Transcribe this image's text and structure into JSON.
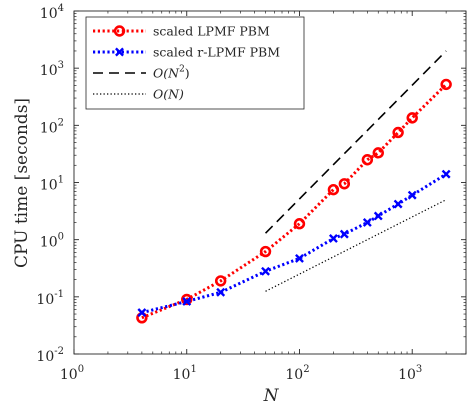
{
  "chart_data": {
    "type": "line",
    "xlabel": "N",
    "ylabel": "CPU time [seconds]",
    "xscale": "log",
    "yscale": "log",
    "xlim": [
      1,
      3000
    ],
    "ylim": [
      0.01,
      10000
    ],
    "xticks": [
      {
        "base": "10",
        "exp": "0",
        "value": 1
      },
      {
        "base": "10",
        "exp": "1",
        "value": 10
      },
      {
        "base": "10",
        "exp": "2",
        "value": 100
      },
      {
        "base": "10",
        "exp": "3",
        "value": 1000
      }
    ],
    "yticks": [
      {
        "base": "10",
        "exp": "-2",
        "value": 0.01
      },
      {
        "base": "10",
        "exp": "-1",
        "value": 0.1
      },
      {
        "base": "10",
        "exp": "0",
        "value": 1
      },
      {
        "base": "10",
        "exp": "1",
        "value": 10
      },
      {
        "base": "10",
        "exp": "2",
        "value": 100
      },
      {
        "base": "10",
        "exp": "3",
        "value": 1000
      },
      {
        "base": "10",
        "exp": "4",
        "value": 10000
      }
    ],
    "grid": false,
    "legend_position": "top-left",
    "series": [
      {
        "name": "scaled LPMF PBM",
        "color": "#ff0000",
        "line": "dotted",
        "marker": "circle",
        "x": [
          4,
          10,
          20,
          50,
          100,
          200,
          250,
          400,
          500,
          750,
          1000,
          2000
        ],
        "y": [
          0.043,
          0.09,
          0.19,
          0.62,
          1.9,
          7.5,
          9.5,
          25,
          33,
          75,
          135,
          520
        ]
      },
      {
        "name": "scaled r-LPMF PBM",
        "color": "#0000ff",
        "line": "dotted",
        "marker": "x",
        "x": [
          4,
          10,
          20,
          50,
          100,
          200,
          250,
          400,
          500,
          750,
          1000,
          2000
        ],
        "y": [
          0.053,
          0.083,
          0.12,
          0.28,
          0.47,
          1.05,
          1.25,
          2.0,
          2.6,
          4.2,
          6.0,
          14
        ]
      },
      {
        "name": "O(N^2)",
        "label_main": "O(N",
        "label_sup": "2",
        "label_end": ")",
        "color": "#000000",
        "line": "dashed",
        "marker": "none",
        "x": [
          50,
          2000
        ],
        "y": [
          1.3,
          2000
        ]
      },
      {
        "name": "O(N)",
        "label_main": "O(N)",
        "label_sup": "",
        "label_end": "",
        "color": "#000000",
        "line": "dotted-fine",
        "marker": "none",
        "x": [
          50,
          2000
        ],
        "y": [
          0.125,
          5
        ]
      }
    ]
  }
}
